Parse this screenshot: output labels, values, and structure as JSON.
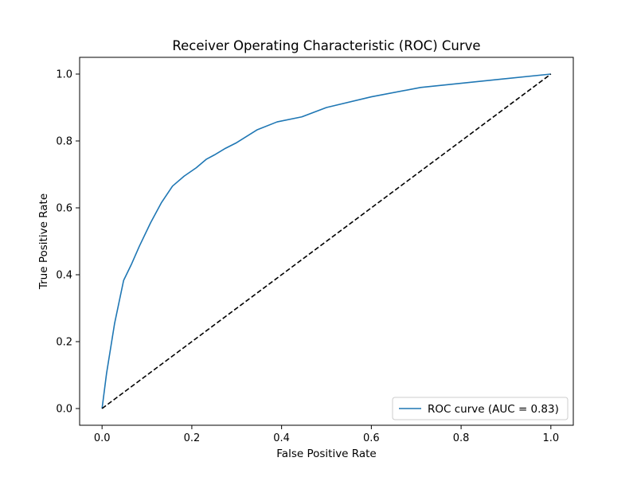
{
  "chart_data": {
    "type": "line",
    "title": "Receiver Operating Characteristic (ROC) Curve",
    "xlabel": "False Positive Rate",
    "ylabel": "True Positive Rate",
    "xlim": [
      -0.05,
      1.05
    ],
    "ylim": [
      -0.05,
      1.05
    ],
    "x_ticks": [
      0.0,
      0.2,
      0.4,
      0.6,
      0.8,
      1.0
    ],
    "y_ticks": [
      0.0,
      0.2,
      0.4,
      0.6,
      0.8,
      1.0
    ],
    "x_tick_labels": [
      "0.0",
      "0.2",
      "0.4",
      "0.6",
      "0.8",
      "1.0"
    ],
    "y_tick_labels": [
      "0.0",
      "0.2",
      "0.4",
      "0.6",
      "0.8",
      "1.0"
    ],
    "grid": false,
    "legend_position": "lower-right",
    "series": [
      {
        "name": "ROC curve (AUC = 0.83)",
        "color": "#1f77b4",
        "style": "solid",
        "x": [
          0.0,
          0.01,
          0.028,
          0.048,
          0.065,
          0.083,
          0.108,
          0.132,
          0.157,
          0.183,
          0.21,
          0.232,
          0.25,
          0.275,
          0.3,
          0.345,
          0.39,
          0.445,
          0.5,
          0.6,
          0.71,
          1.0
        ],
        "y": [
          0.0,
          0.105,
          0.255,
          0.383,
          0.43,
          0.485,
          0.555,
          0.615,
          0.665,
          0.695,
          0.72,
          0.745,
          0.758,
          0.778,
          0.795,
          0.833,
          0.857,
          0.872,
          0.9,
          0.932,
          0.96,
          1.0
        ]
      },
      {
        "name": "",
        "color": "#000000",
        "style": "dashed",
        "x": [
          0.0,
          1.0
        ],
        "y": [
          0.0,
          1.0
        ]
      }
    ],
    "legend_entries": [
      {
        "label": "ROC curve (AUC = 0.83)",
        "color": "#1f77b4"
      }
    ]
  }
}
